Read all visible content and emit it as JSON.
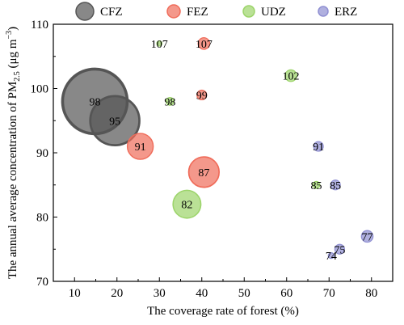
{
  "chart_data": {
    "type": "scatter",
    "xlabel": "The coverage rate of forest (%)",
    "ylabel": "The annual average concentration of PM2.5 (μg m−3)",
    "ylabel_parts": {
      "main": "The annual average concentration of PM",
      "sub": "2.5",
      "unit_open": " (μg m",
      "sup": "−3",
      "unit_close": ")"
    },
    "xlim": [
      5,
      85
    ],
    "ylim": [
      70,
      110
    ],
    "xticks": [
      "10",
      "20",
      "30",
      "40",
      "50",
      "60",
      "70",
      "80"
    ],
    "yticks": [
      "70",
      "80",
      "90",
      "100",
      "110"
    ],
    "grid": false,
    "legend_position": "top",
    "series": [
      {
        "name": "CFZ",
        "color": "#555555",
        "points": [
          {
            "x": 14.8,
            "y": 98,
            "label": "98",
            "size": 5.0
          },
          {
            "x": 19.5,
            "y": 95,
            "label": "95",
            "size": 3.8
          }
        ]
      },
      {
        "name": "FEZ",
        "color": "#f06c5a",
        "points": [
          {
            "x": 40.5,
            "y": 107,
            "label": "107",
            "size": 0.9
          },
          {
            "x": 40.0,
            "y": 99,
            "label": "99",
            "size": 0.75
          },
          {
            "x": 25.5,
            "y": 91,
            "label": "91",
            "size": 2.0
          },
          {
            "x": 40.5,
            "y": 87,
            "label": "87",
            "size": 2.35
          }
        ]
      },
      {
        "name": "UDZ",
        "color": "#9cd46a",
        "points": [
          {
            "x": 30.0,
            "y": 107,
            "label": "107",
            "size": 0.4
          },
          {
            "x": 32.5,
            "y": 98,
            "label": "98",
            "size": 0.6
          },
          {
            "x": 61.0,
            "y": 102,
            "label": "102",
            "size": 0.9
          },
          {
            "x": 36.5,
            "y": 82,
            "label": "82",
            "size": 2.15
          },
          {
            "x": 67.0,
            "y": 85,
            "label": "85",
            "size": 0.55
          }
        ]
      },
      {
        "name": "ERZ",
        "color": "#8f8fd2",
        "points": [
          {
            "x": 67.5,
            "y": 91,
            "label": "91",
            "size": 0.75
          },
          {
            "x": 71.5,
            "y": 85,
            "label": "85",
            "size": 0.75
          },
          {
            "x": 79.0,
            "y": 77,
            "label": "77",
            "size": 0.9
          },
          {
            "x": 72.5,
            "y": 75,
            "label": "75",
            "size": 0.75
          },
          {
            "x": 70.5,
            "y": 74,
            "label": "74",
            "size": 0.45
          }
        ]
      }
    ]
  }
}
